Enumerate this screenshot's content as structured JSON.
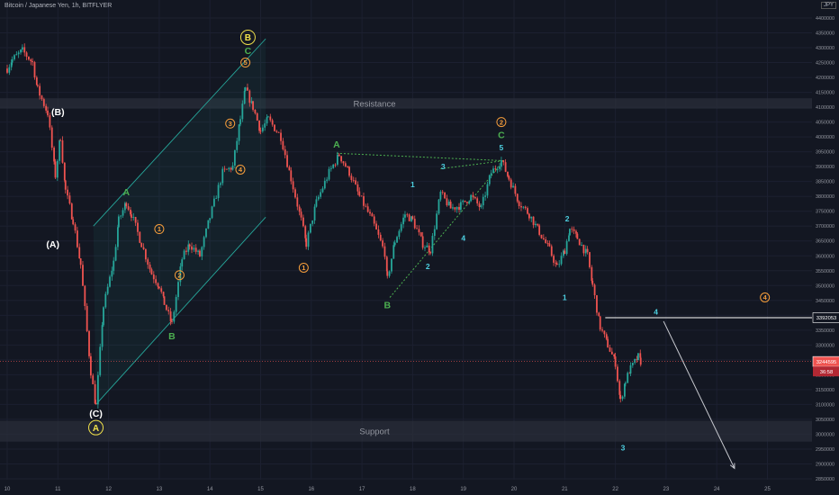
{
  "header": {
    "title": "Bitcoin / Japanese Yen, 1h, BITFLYER",
    "currency": "JPY"
  },
  "price_tags": {
    "level": "3392053",
    "last": "3244595",
    "countdown": "36:58"
  },
  "zones": {
    "resistance": "Resistance",
    "support": "Support"
  },
  "colors": {
    "background": "#131722",
    "up": "#26a69a",
    "down": "#ef5350",
    "wave_green": "#4caf50",
    "wave_orange": "#f59d3b",
    "wave_cyan": "#4dd0e1",
    "wave_yellow": "#f0e04a",
    "wave_white": "#ffffff"
  },
  "chart_data": {
    "type": "candlestick",
    "x_tick_labels": [
      "10",
      "11",
      "12",
      "13",
      "14",
      "15",
      "16",
      "17",
      "18",
      "19",
      "20",
      "21",
      "22",
      "23",
      "24",
      "25"
    ],
    "y_tick_labels": [
      "4400000",
      "4350000",
      "4300000",
      "4250000",
      "4200000",
      "4150000",
      "4100000",
      "4050000",
      "4000000",
      "3950000",
      "3900000",
      "3850000",
      "3800000",
      "3750000",
      "3700000",
      "3650000",
      "3600000",
      "3550000",
      "3500000",
      "3450000",
      "3400000",
      "3350000",
      "3300000",
      "3250000",
      "3200000",
      "3150000",
      "3100000",
      "3050000",
      "3000000",
      "2950000",
      "2900000",
      "2850000"
    ],
    "ylim": [
      2850000,
      4400000
    ],
    "zones": [
      {
        "name": "Resistance",
        "from": 4095000,
        "to": 4130000
      },
      {
        "name": "Support",
        "from": 2975000,
        "to": 3045000
      }
    ],
    "price_points": [
      [
        10.0,
        4230000
      ],
      [
        10.1,
        4260000
      ],
      [
        10.3,
        4290000
      ],
      [
        10.5,
        4250000
      ],
      [
        10.6,
        4160000
      ],
      [
        10.8,
        4080000
      ],
      [
        10.95,
        3870000
      ],
      [
        11.05,
        4000000
      ],
      [
        11.15,
        3820000
      ],
      [
        11.3,
        3720000
      ],
      [
        11.45,
        3570000
      ],
      [
        11.65,
        3210000
      ],
      [
        11.75,
        3095000
      ],
      [
        11.9,
        3430000
      ],
      [
        12.1,
        3580000
      ],
      [
        12.2,
        3720000
      ],
      [
        12.35,
        3780000
      ],
      [
        12.45,
        3740000
      ],
      [
        12.65,
        3640000
      ],
      [
        12.85,
        3540000
      ],
      [
        13.0,
        3500000
      ],
      [
        13.1,
        3440000
      ],
      [
        13.25,
        3370000
      ],
      [
        13.45,
        3590000
      ],
      [
        13.6,
        3640000
      ],
      [
        13.8,
        3600000
      ],
      [
        14.0,
        3730000
      ],
      [
        14.25,
        3880000
      ],
      [
        14.45,
        3900000
      ],
      [
        14.6,
        4060000
      ],
      [
        14.7,
        4160000
      ],
      [
        14.85,
        4100000
      ],
      [
        15.0,
        4020000
      ],
      [
        15.15,
        4060000
      ],
      [
        15.4,
        4000000
      ],
      [
        15.6,
        3860000
      ],
      [
        15.8,
        3720000
      ],
      [
        15.9,
        3640000
      ],
      [
        16.1,
        3780000
      ],
      [
        16.35,
        3880000
      ],
      [
        16.55,
        3940000
      ],
      [
        16.75,
        3880000
      ],
      [
        16.95,
        3800000
      ],
      [
        17.2,
        3720000
      ],
      [
        17.45,
        3610000
      ],
      [
        17.5,
        3520000
      ],
      [
        17.65,
        3650000
      ],
      [
        17.85,
        3740000
      ],
      [
        18.0,
        3720000
      ],
      [
        18.2,
        3640000
      ],
      [
        18.35,
        3620000
      ],
      [
        18.55,
        3810000
      ],
      [
        18.75,
        3760000
      ],
      [
        18.95,
        3770000
      ],
      [
        19.15,
        3800000
      ],
      [
        19.35,
        3760000
      ],
      [
        19.55,
        3880000
      ],
      [
        19.75,
        3920000
      ],
      [
        19.9,
        3860000
      ],
      [
        20.1,
        3780000
      ],
      [
        20.3,
        3740000
      ],
      [
        20.5,
        3680000
      ],
      [
        20.7,
        3620000
      ],
      [
        20.85,
        3560000
      ],
      [
        21.0,
        3620000
      ],
      [
        21.1,
        3690000
      ],
      [
        21.25,
        3660000
      ],
      [
        21.45,
        3600000
      ],
      [
        21.55,
        3500000
      ],
      [
        21.7,
        3360000
      ],
      [
        21.85,
        3300000
      ],
      [
        22.0,
        3240000
      ],
      [
        22.1,
        3110000
      ],
      [
        22.2,
        3180000
      ],
      [
        22.3,
        3220000
      ],
      [
        22.45,
        3260000
      ],
      [
        22.5,
        3244595
      ]
    ],
    "horizontal_lines": [
      {
        "label": "3392053",
        "price": 3392053,
        "from_x": 21.8
      }
    ],
    "projection_arrow": {
      "from": [
        22.95,
        3380000
      ],
      "to": [
        24.35,
        2885000
      ]
    },
    "channel": {
      "upper": [
        [
          11.7,
          3700000
        ],
        [
          15.1,
          4330000
        ]
      ],
      "lower": [
        [
          11.75,
          3100000
        ],
        [
          15.1,
          3730000
        ]
      ]
    },
    "triangle": {
      "top": [
        [
          16.5,
          3945000
        ],
        [
          19.8,
          3920000
        ]
      ],
      "bottom": [
        [
          17.55,
          3460000
        ],
        [
          19.8,
          3920000
        ]
      ]
    },
    "wave_labels": [
      {
        "text": "(B)",
        "x": 11.0,
        "price": 4085000,
        "color": "white"
      },
      {
        "text": "(A)",
        "x": 10.9,
        "price": 3640000,
        "color": "white"
      },
      {
        "text": "(C)",
        "x": 11.75,
        "price": 3070000,
        "color": "white"
      },
      {
        "text": "A",
        "x": 11.75,
        "price": 3022000,
        "color": "yellow",
        "circled": true
      },
      {
        "text": "B",
        "x": 14.75,
        "price": 4335000,
        "color": "yellow",
        "circled": true
      },
      {
        "text": "C",
        "x": 14.75,
        "price": 4290000,
        "color": "green"
      },
      {
        "text": "A",
        "x": 12.35,
        "price": 3815000,
        "color": "green"
      },
      {
        "text": "B",
        "x": 13.25,
        "price": 3330000,
        "color": "green"
      },
      {
        "text": "1",
        "x": 13.0,
        "price": 3690000,
        "color": "orange",
        "circled": true
      },
      {
        "text": "2",
        "x": 13.4,
        "price": 3535000,
        "color": "orange",
        "circled": true
      },
      {
        "text": "3",
        "x": 14.4,
        "price": 4045000,
        "color": "orange",
        "circled": true
      },
      {
        "text": "4",
        "x": 14.6,
        "price": 3890000,
        "color": "orange",
        "circled": true
      },
      {
        "text": "5",
        "x": 14.7,
        "price": 4250000,
        "color": "orange",
        "circled": true
      },
      {
        "text": "1",
        "x": 15.85,
        "price": 3560000,
        "color": "orange",
        "circled": true
      },
      {
        "text": "A",
        "x": 16.5,
        "price": 3975000,
        "color": "green"
      },
      {
        "text": "B",
        "x": 17.5,
        "price": 3435000,
        "color": "green"
      },
      {
        "text": "2",
        "x": 19.75,
        "price": 4050000,
        "color": "orange",
        "circled": true
      },
      {
        "text": "C",
        "x": 19.75,
        "price": 4008000,
        "color": "green"
      },
      {
        "text": "5",
        "x": 19.75,
        "price": 3965000,
        "color": "cyan"
      },
      {
        "text": "1",
        "x": 18.0,
        "price": 3840000,
        "color": "cyan"
      },
      {
        "text": "2",
        "x": 18.3,
        "price": 3565000,
        "color": "cyan"
      },
      {
        "text": "3",
        "x": 18.6,
        "price": 3900000,
        "color": "cyan"
      },
      {
        "text": "4",
        "x": 19.0,
        "price": 3660000,
        "color": "cyan"
      },
      {
        "text": "1",
        "x": 21.0,
        "price": 3460000,
        "color": "cyan"
      },
      {
        "text": "2",
        "x": 21.05,
        "price": 3725000,
        "color": "cyan"
      },
      {
        "text": "3",
        "x": 22.15,
        "price": 2955000,
        "color": "cyan"
      },
      {
        "text": "4",
        "x": 22.8,
        "price": 3412000,
        "color": "cyan"
      },
      {
        "text": "4",
        "x": 24.95,
        "price": 3460000,
        "color": "orange",
        "circled": true
      }
    ]
  }
}
